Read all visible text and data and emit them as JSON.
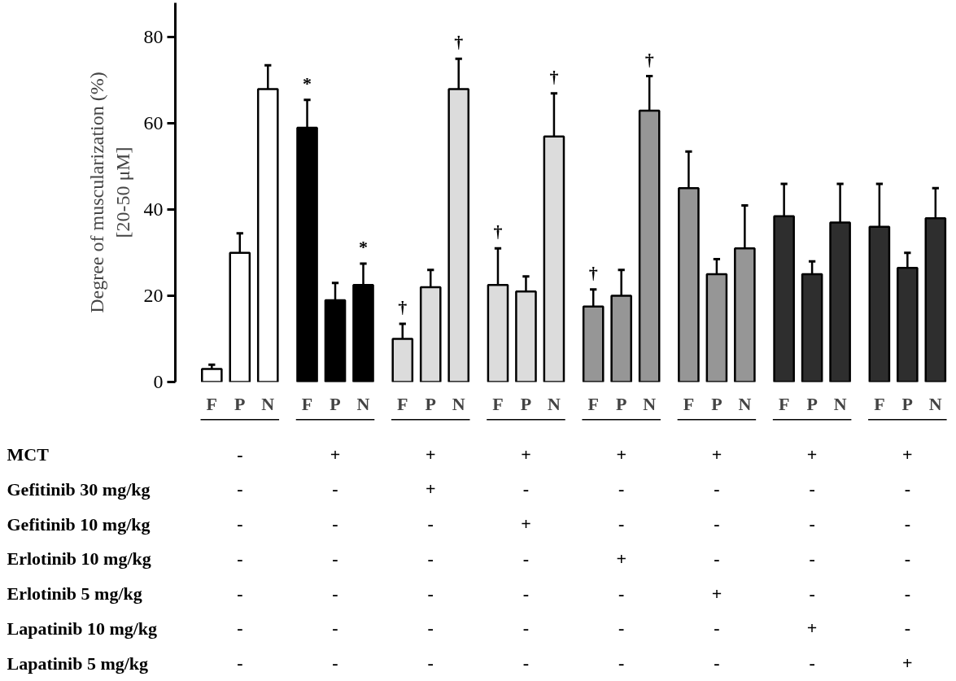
{
  "chart_data": {
    "type": "bar",
    "ylabel": "Degree of muscularization (%)\n[20-50 μM]",
    "categories": [
      "F",
      "P",
      "N",
      "F",
      "P",
      "N",
      "F",
      "P",
      "N",
      "F",
      "P",
      "N",
      "F",
      "P",
      "N",
      "F",
      "P",
      "N",
      "F",
      "P",
      "N",
      "F",
      "P",
      "N"
    ],
    "values": [
      3,
      30,
      68,
      59,
      19,
      22.5,
      10,
      22,
      68,
      22.5,
      21,
      57,
      17.5,
      20,
      63,
      45,
      25,
      31,
      38.5,
      25,
      37,
      36,
      26.5,
      38
    ],
    "errors": [
      [
        3,
        4
      ],
      [
        30,
        34.5
      ],
      [
        68,
        73.5
      ],
      [
        59,
        65.5
      ],
      [
        19,
        23
      ],
      [
        22.5,
        27.5
      ],
      [
        10,
        13.5
      ],
      [
        22,
        26
      ],
      [
        68,
        75
      ],
      [
        22.5,
        31
      ],
      [
        21,
        24.5
      ],
      [
        57,
        67
      ],
      [
        17.5,
        21.5
      ],
      [
        20,
        26
      ],
      [
        63,
        71
      ],
      [
        45,
        53.5
      ],
      [
        25,
        28.5
      ],
      [
        31,
        41
      ],
      [
        38.5,
        46
      ],
      [
        25,
        28
      ],
      [
        37,
        46
      ],
      [
        36,
        46
      ],
      [
        26.5,
        30
      ],
      [
        38,
        45
      ]
    ],
    "colors": [
      "#ffffff",
      "#ffffff",
      "#ffffff",
      "#000000",
      "#000000",
      "#000000",
      "#dcdcdc",
      "#dcdcdc",
      "#dcdcdc",
      "#dcdcdc",
      "#dcdcdc",
      "#dcdcdc",
      "#969696",
      "#969696",
      "#969696",
      "#969696",
      "#969696",
      "#969696",
      "#2e2e2e",
      "#2e2e2e",
      "#2e2e2e",
      "#2e2e2e",
      "#2e2e2e",
      "#2e2e2e"
    ],
    "value_labels": [
      null,
      null,
      null,
      "*",
      null,
      "*",
      "†",
      null,
      "†",
      "†",
      null,
      "†",
      "†",
      null,
      "†",
      null,
      null,
      null,
      null,
      null,
      null,
      null,
      null,
      null
    ],
    "ylim": [
      0,
      88
    ],
    "yticks": [
      0,
      20,
      40,
      60,
      80
    ],
    "grid": false,
    "annotations": [
      "MCT",
      "Gefitinib 30 mg/kg",
      "Gefitinib 10 mg/kg",
      "Erlotinib 10 mg/kg",
      "Erlotinib  5 mg/kg",
      "Lapatinib 10 mg/kg",
      "Lapatinib  5 mg/kg",
      "-",
      "+",
      "+",
      "+",
      "+",
      "+",
      "+",
      "+",
      "-",
      "-",
      "+",
      "-",
      "-",
      "-",
      "-",
      "-",
      "-",
      "-",
      "-",
      "+",
      "-",
      "-",
      "-",
      "-",
      "-",
      "-",
      "-",
      "-",
      "+",
      "-",
      "-",
      "-",
      "-",
      "-",
      "-",
      "-",
      "-",
      "+",
      "-",
      "-",
      "-",
      "-",
      "-",
      "-",
      "-",
      "-",
      "+",
      "-",
      "-",
      "-",
      "-",
      "-",
      "-",
      "-",
      "-",
      "+"
    ]
  }
}
